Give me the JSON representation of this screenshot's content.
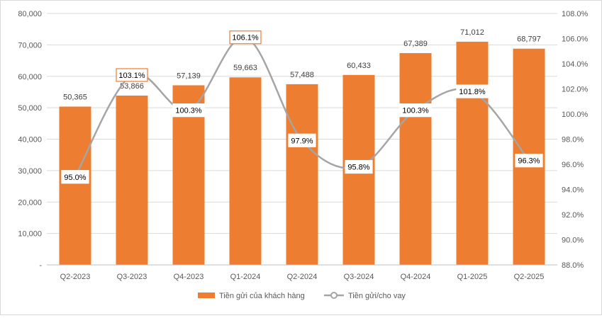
{
  "chart_data": {
    "type": "bar",
    "categories": [
      "Q2-2023",
      "Q3-2023",
      "Q4-2023",
      "Q1-2024",
      "Q2-2024",
      "Q3-2024",
      "Q4-2024",
      "Q1-2025",
      "Q2-2025"
    ],
    "series": [
      {
        "name": "Tiền gửi của khách hàng",
        "type": "bar",
        "axis": "left",
        "color": "#ED7D31",
        "values": [
          50365,
          53866,
          57139,
          59663,
          57488,
          60433,
          67389,
          71012,
          68797
        ],
        "labels": [
          "50,365",
          "53,866",
          "57,139",
          "59,663",
          "57,488",
          "60,433",
          "67,389",
          "71,012",
          "68,797"
        ]
      },
      {
        "name": "Tiền gửi/cho vay",
        "type": "line",
        "axis": "right",
        "color": "#A5A5A5",
        "values": [
          95.0,
          103.1,
          100.3,
          106.1,
          97.9,
          95.8,
          100.3,
          101.8,
          96.3
        ],
        "labels": [
          "95.0%",
          "103.1%",
          "100.3%",
          "106.1%",
          "97.9%",
          "95.8%",
          "100.3%",
          "101.8%",
          "96.3%"
        ],
        "highlighted": [
          false,
          true,
          false,
          true,
          false,
          false,
          false,
          false,
          false
        ]
      }
    ],
    "y_left": {
      "ylim": [
        0,
        80000
      ],
      "ticks": [
        "-",
        "10,000",
        "20,000",
        "30,000",
        "40,000",
        "50,000",
        "60,000",
        "70,000",
        "80,000"
      ]
    },
    "y_right": {
      "ylim": [
        88,
        108
      ],
      "ticks": [
        "88.0%",
        "90.0%",
        "92.0%",
        "94.0%",
        "96.0%",
        "98.0%",
        "100.0%",
        "102.0%",
        "104.0%",
        "106.0%",
        "108.0%"
      ]
    },
    "grid": true,
    "legend": "bottom",
    "highlight_color": "#ED7D31",
    "gridline_color": "#D9D9D9"
  }
}
